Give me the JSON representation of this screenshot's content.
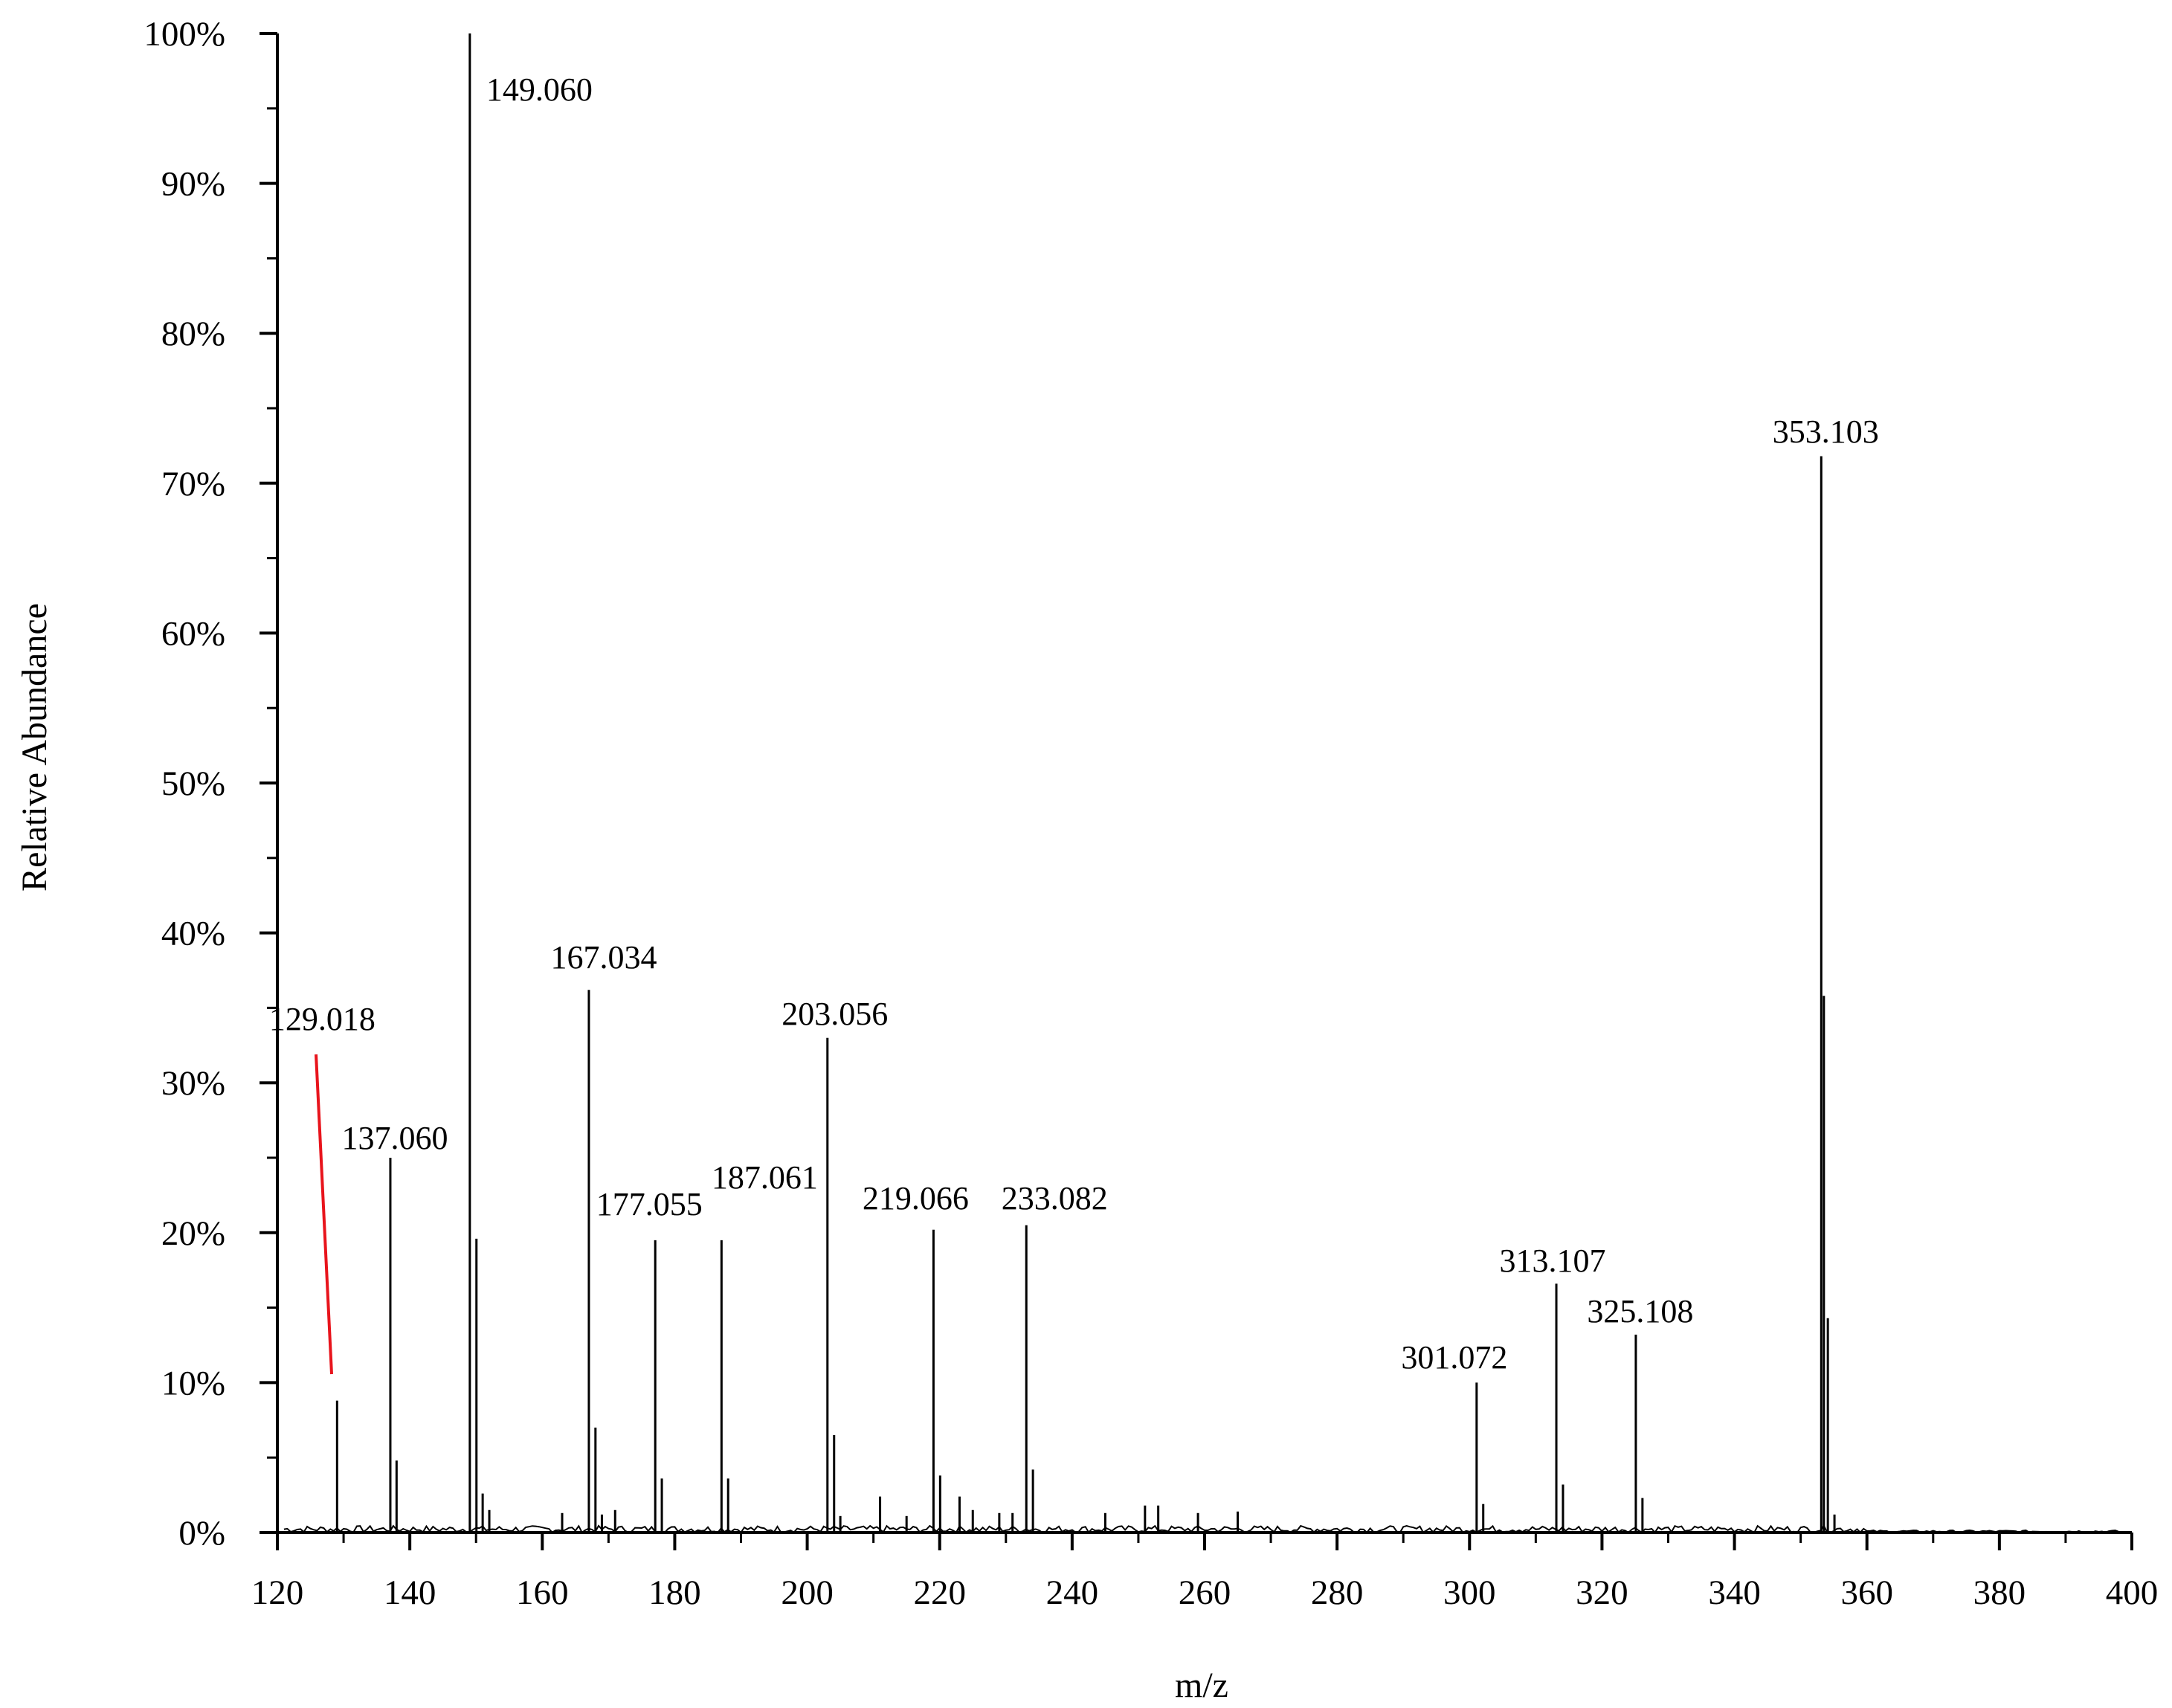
{
  "chart_data": {
    "type": "bar",
    "title": "",
    "xlabel": "m/z",
    "ylabel": "Relative Abundance",
    "xlim": [
      120,
      400
    ],
    "ylim": [
      0,
      100
    ],
    "x_ticks": [
      120,
      140,
      160,
      180,
      200,
      220,
      240,
      260,
      280,
      300,
      320,
      340,
      360,
      380,
      400
    ],
    "y_ticks": [
      "0%",
      "10%",
      "20%",
      "30%",
      "40%",
      "50%",
      "60%",
      "70%",
      "80%",
      "90%",
      "100%"
    ],
    "y_tick_values": [
      0,
      10,
      20,
      30,
      40,
      50,
      60,
      70,
      80,
      90,
      100
    ],
    "labeled_peaks": [
      {
        "label": "129.018",
        "mz": 129.018,
        "abundance": 8.8
      },
      {
        "label": "137.060",
        "mz": 137.06,
        "abundance": 25
      },
      {
        "label": "149.060",
        "mz": 149.06,
        "abundance": 100
      },
      {
        "label": "167.034",
        "mz": 167.034,
        "abundance": 36.2
      },
      {
        "label": "177.055",
        "mz": 177.055,
        "abundance": 19.5
      },
      {
        "label": "187.061",
        "mz": 187.061,
        "abundance": 19.5
      },
      {
        "label": "203.056",
        "mz": 203.056,
        "abundance": 33
      },
      {
        "label": "219.066",
        "mz": 219.066,
        "abundance": 20.2
      },
      {
        "label": "233.082",
        "mz": 233.082,
        "abundance": 20.5
      },
      {
        "label": "301.072",
        "mz": 301.072,
        "abundance": 10
      },
      {
        "label": "313.107",
        "mz": 313.107,
        "abundance": 16.6
      },
      {
        "label": "325.108",
        "mz": 325.108,
        "abundance": 13.2
      },
      {
        "label": "353.103",
        "mz": 353.103,
        "abundance": 71.8
      }
    ],
    "minor_peaks": [
      {
        "mz": 138.0,
        "abundance": 4.8
      },
      {
        "mz": 150.06,
        "abundance": 19.6
      },
      {
        "mz": 151.0,
        "abundance": 2.6
      },
      {
        "mz": 152.0,
        "abundance": 1.5
      },
      {
        "mz": 163.0,
        "abundance": 1.3
      },
      {
        "mz": 168.03,
        "abundance": 7.0
      },
      {
        "mz": 169.0,
        "abundance": 1.2
      },
      {
        "mz": 171.0,
        "abundance": 1.5
      },
      {
        "mz": 178.05,
        "abundance": 3.6
      },
      {
        "mz": 188.06,
        "abundance": 3.6
      },
      {
        "mz": 204.06,
        "abundance": 6.5
      },
      {
        "mz": 205.0,
        "abundance": 1.1
      },
      {
        "mz": 211.0,
        "abundance": 2.4
      },
      {
        "mz": 215.0,
        "abundance": 1.1
      },
      {
        "mz": 220.07,
        "abundance": 3.8
      },
      {
        "mz": 223.0,
        "abundance": 2.4
      },
      {
        "mz": 225.0,
        "abundance": 1.5
      },
      {
        "mz": 229.0,
        "abundance": 1.3
      },
      {
        "mz": 231.0,
        "abundance": 1.3
      },
      {
        "mz": 234.08,
        "abundance": 4.2
      },
      {
        "mz": 245.0,
        "abundance": 1.3
      },
      {
        "mz": 251.0,
        "abundance": 1.8
      },
      {
        "mz": 253.0,
        "abundance": 1.8
      },
      {
        "mz": 259.0,
        "abundance": 1.3
      },
      {
        "mz": 265.0,
        "abundance": 1.4
      },
      {
        "mz": 302.07,
        "abundance": 1.9
      },
      {
        "mz": 314.11,
        "abundance": 3.2
      },
      {
        "mz": 326.11,
        "abundance": 2.3
      },
      {
        "mz": 353.5,
        "abundance": 35.8
      },
      {
        "mz": 354.1,
        "abundance": 14.3
      },
      {
        "mz": 355.1,
        "abundance": 1.2
      }
    ],
    "annotation_line_color": "#e8141c",
    "bar_color": "#000000"
  }
}
